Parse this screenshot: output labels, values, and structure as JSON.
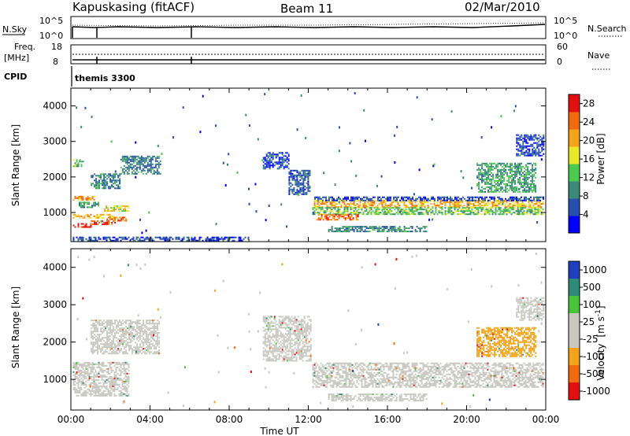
{
  "header": {
    "station": "Kapuskasing (fitACF)",
    "beam": "Beam 11",
    "date": "02/Mar/2010"
  },
  "panels": {
    "nsky_label": "N.Sky",
    "nsky_ticks": [
      "10^5",
      "10^0"
    ],
    "nsearch_label": "N.Search",
    "nsearch_ticks": [
      "10^5",
      "10^0"
    ],
    "freq_label_1": "Freq.",
    "freq_label_2": "[MHz]",
    "freq_ticks": [
      "18",
      "8"
    ],
    "nave_label": "Nave",
    "nave_ticks": [
      "60",
      "0"
    ],
    "cpid_label": "CPID",
    "cpid_value": "themis 3300"
  },
  "chart_data": [
    {
      "type": "heatmap",
      "name": "power",
      "xlabel": "Time UT",
      "ylabel": "Slant Range [km]",
      "x_ticks": [
        "00:00",
        "04:00",
        "08:00",
        "12:00",
        "16:00",
        "20:00",
        "00:00"
      ],
      "x_range_hours": [
        0,
        24
      ],
      "y_ticks": [
        1000,
        2000,
        3000,
        4000
      ],
      "ylim": [
        180,
        4500
      ],
      "colorbar_label": "Power [dB]",
      "colorbar_ticks": [
        4,
        8,
        12,
        16,
        20,
        24,
        28
      ],
      "colorbar_range": [
        0,
        30
      ],
      "colors": [
        "#0000ff",
        "#264fb0",
        "#3b8a78",
        "#4ec84e",
        "#e8e82a",
        "#f5a21c",
        "#f06a10",
        "#e41010"
      ],
      "echo_regions": [
        {
          "t0": 0.1,
          "t1": 1.0,
          "r0": 600,
          "r1": 700,
          "level": 28
        },
        {
          "t0": 1.0,
          "t1": 2.2,
          "r0": 680,
          "r1": 780,
          "level": 26
        },
        {
          "t0": 1.8,
          "t1": 2.8,
          "r0": 790,
          "r1": 880,
          "level": 24
        },
        {
          "t0": 0.1,
          "t1": 2.2,
          "r0": 860,
          "r1": 960,
          "level": 20
        },
        {
          "t0": 1.6,
          "t1": 2.9,
          "r0": 1050,
          "r1": 1200,
          "level": 18
        },
        {
          "t0": 0.1,
          "t1": 1.2,
          "r0": 1350,
          "r1": 1470,
          "level": 22
        },
        {
          "t0": 0.4,
          "t1": 1.4,
          "r0": 1150,
          "r1": 1300,
          "level": 10
        },
        {
          "t0": 1.0,
          "t1": 2.5,
          "r0": 1700,
          "r1": 2100,
          "level": 9
        },
        {
          "t0": 2.5,
          "t1": 4.5,
          "r0": 2100,
          "r1": 2600,
          "level": 8
        },
        {
          "t0": 0.1,
          "t1": 0.6,
          "r0": 2300,
          "r1": 2500,
          "level": 12
        },
        {
          "t0": 9.7,
          "t1": 11.0,
          "r0": 2250,
          "r1": 2700,
          "level": 5
        },
        {
          "t0": 11.0,
          "t1": 12.1,
          "r0": 1500,
          "r1": 2200,
          "level": 6
        },
        {
          "t0": 12.2,
          "t1": 23.9,
          "r0": 1150,
          "r1": 1350,
          "level": 20
        },
        {
          "t0": 12.2,
          "t1": 23.9,
          "r0": 950,
          "r1": 1150,
          "level": 13
        },
        {
          "t0": 12.4,
          "t1": 14.5,
          "r0": 800,
          "r1": 950,
          "level": 24
        },
        {
          "t0": 12.3,
          "t1": 23.9,
          "r0": 1350,
          "r1": 1450,
          "level": 5
        },
        {
          "t0": 13.0,
          "t1": 18.0,
          "r0": 450,
          "r1": 620,
          "level": 9
        },
        {
          "t0": 20.5,
          "t1": 23.5,
          "r0": 1600,
          "r1": 2400,
          "level": 11
        },
        {
          "t0": 22.5,
          "t1": 23.9,
          "r0": 2600,
          "r1": 3200,
          "level": 5
        },
        {
          "t0": 0.1,
          "t1": 9.0,
          "r0": 200,
          "r1": 320,
          "level": 5
        }
      ]
    },
    {
      "type": "heatmap",
      "name": "velocity",
      "xlabel": "Time UT",
      "ylabel": "Slant Range [km]",
      "x_ticks": [
        "00:00",
        "04:00",
        "08:00",
        "12:00",
        "16:00",
        "20:00",
        "00:00"
      ],
      "x_range_hours": [
        0,
        24
      ],
      "y_ticks": [
        1000,
        2000,
        3000,
        4000
      ],
      "ylim": [
        180,
        4500
      ],
      "colorbar_label": "Velocity [m s^-1]",
      "colorbar_ticks": [
        "1000",
        "500",
        "100",
        "25",
        "-25",
        "-100",
        "-500",
        "-1000"
      ],
      "colors": [
        "#1f3fbf",
        "#2f8a7a",
        "#4bc43c",
        "#c8c8c0",
        "#c8c8c0",
        "#f5a21c",
        "#f06a10",
        "#e41010"
      ],
      "echo_regions": [
        {
          "t0": 0.1,
          "t1": 2.9,
          "r0": 580,
          "r1": 1470,
          "level": 25
        },
        {
          "t0": 1.0,
          "t1": 4.5,
          "r0": 1700,
          "r1": 2600,
          "level": 25
        },
        {
          "t0": 9.7,
          "t1": 12.1,
          "r0": 1500,
          "r1": 2700,
          "level": 25
        },
        {
          "t0": 12.2,
          "t1": 23.9,
          "r0": 800,
          "r1": 1450,
          "level": 25
        },
        {
          "t0": 13.0,
          "t1": 18.0,
          "r0": 450,
          "r1": 620,
          "level": 25
        },
        {
          "t0": 20.5,
          "t1": 23.5,
          "r0": 1600,
          "r1": 2400,
          "level": -100
        },
        {
          "t0": 22.5,
          "t1": 23.9,
          "r0": 2600,
          "r1": 3200,
          "level": 25
        }
      ]
    }
  ],
  "axis_labels": {
    "time": "Time UT",
    "range": "Slant Range [km]",
    "power_cb": "Power [dB]",
    "velocity_cb": "Velocity"
  },
  "velocity_unit_text": {
    "open": "[m s",
    "sup": "-1",
    "close": "]"
  }
}
